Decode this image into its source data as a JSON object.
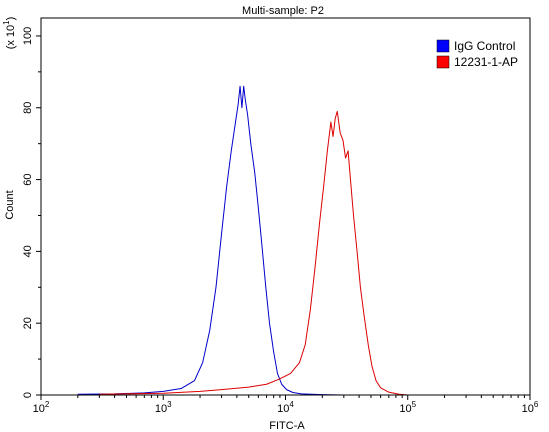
{
  "chart_data": {
    "type": "line",
    "title": "Multi-sample: P2",
    "xlabel": "FITC-A",
    "ylabel": "Count",
    "y_multiplier": {
      "base": "(x 10",
      "exp": "1",
      "close": ")"
    },
    "x_scale": "log",
    "xlim": [
      100,
      1000000
    ],
    "ylim": [
      0,
      105
    ],
    "x_ticks": [
      {
        "base": "10",
        "exp": "2",
        "value": 100
      },
      {
        "base": "10",
        "exp": "3",
        "value": 1000
      },
      {
        "base": "10",
        "exp": "4",
        "value": 10000
      },
      {
        "base": "10",
        "exp": "5",
        "value": 100000
      },
      {
        "base": "10",
        "exp": "6",
        "value": 1000000
      }
    ],
    "y_ticks": [
      "0",
      "20",
      "40",
      "60",
      "80",
      "100"
    ],
    "legend_position": "top-right",
    "series": [
      {
        "name": "IgG Control",
        "color": "#0000cc",
        "legend_color": "#0000ff",
        "points": [
          [
            200,
            0.2
          ],
          [
            400,
            0.3
          ],
          [
            700,
            0.6
          ],
          [
            1000,
            1.0
          ],
          [
            1400,
            1.8
          ],
          [
            1800,
            4.0
          ],
          [
            2100,
            9
          ],
          [
            2400,
            18
          ],
          [
            2700,
            30
          ],
          [
            3000,
            45
          ],
          [
            3300,
            58
          ],
          [
            3600,
            68
          ],
          [
            3900,
            76
          ],
          [
            4100,
            81
          ],
          [
            4250,
            86
          ],
          [
            4400,
            80
          ],
          [
            4550,
            86
          ],
          [
            4700,
            82
          ],
          [
            4900,
            78
          ],
          [
            5200,
            70
          ],
          [
            5600,
            62
          ],
          [
            6000,
            52
          ],
          [
            6400,
            42
          ],
          [
            6900,
            30
          ],
          [
            7400,
            20
          ],
          [
            8000,
            12
          ],
          [
            8600,
            6
          ],
          [
            9300,
            3
          ],
          [
            10200,
            1.5
          ],
          [
            11500,
            0.7
          ],
          [
            13500,
            0.3
          ],
          [
            20000,
            0.1
          ],
          [
            30000,
            0
          ]
        ]
      },
      {
        "name": "12231-1-AP",
        "color": "#dd0000",
        "legend_color": "#ff0000",
        "points": [
          [
            300,
            0.2
          ],
          [
            1000,
            0.5
          ],
          [
            2000,
            1.0
          ],
          [
            3000,
            1.5
          ],
          [
            5000,
            2.2
          ],
          [
            7000,
            3.0
          ],
          [
            9000,
            4.5
          ],
          [
            11000,
            6
          ],
          [
            13000,
            9
          ],
          [
            14500,
            14
          ],
          [
            16000,
            24
          ],
          [
            17500,
            36
          ],
          [
            19000,
            48
          ],
          [
            20500,
            58
          ],
          [
            22000,
            68
          ],
          [
            23500,
            76
          ],
          [
            24500,
            72
          ],
          [
            25500,
            77
          ],
          [
            26500,
            79
          ],
          [
            28000,
            73
          ],
          [
            29500,
            71
          ],
          [
            31000,
            66
          ],
          [
            32500,
            68
          ],
          [
            34000,
            60
          ],
          [
            36000,
            50
          ],
          [
            38500,
            40
          ],
          [
            41000,
            30
          ],
          [
            44000,
            22
          ],
          [
            47500,
            14
          ],
          [
            51000,
            8
          ],
          [
            55000,
            4
          ],
          [
            60000,
            2
          ],
          [
            70000,
            0.8
          ],
          [
            85000,
            0.2
          ],
          [
            100000,
            0
          ]
        ]
      }
    ]
  }
}
